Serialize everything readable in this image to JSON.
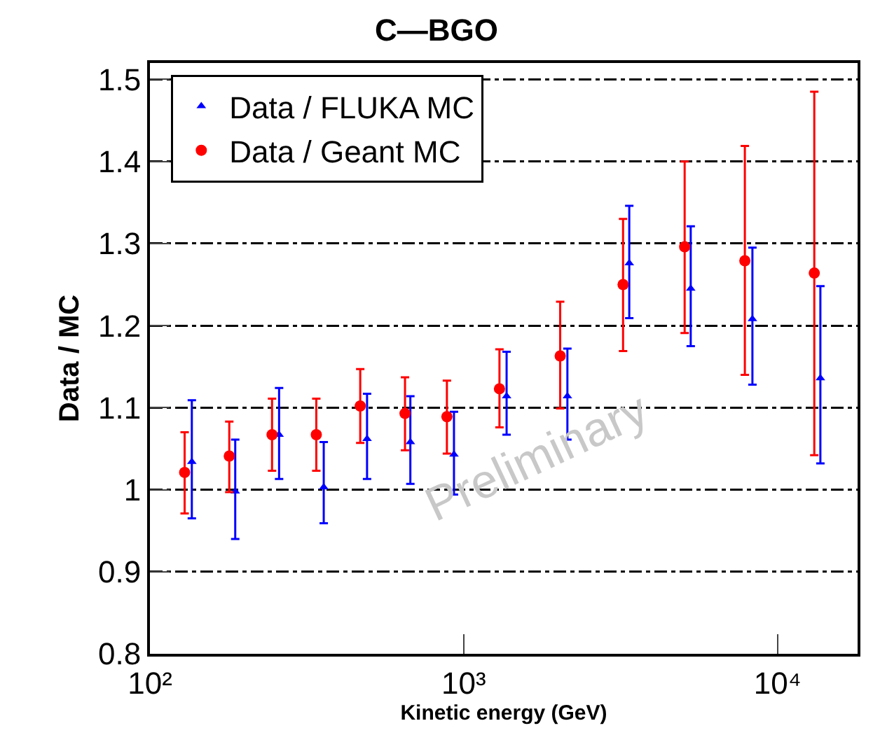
{
  "chart_data": {
    "type": "scatter",
    "title": "C—BGO",
    "xlabel": "Kinetic energy (GeV)",
    "ylabel": "Data / MC",
    "log": "x",
    "xlim": [
      100,
      18000
    ],
    "xticks": [
      {
        "value": 100,
        "label": "10²"
      },
      {
        "value": 1000,
        "label": "10³"
      },
      {
        "value": 10000,
        "label": "10⁴"
      }
    ],
    "ylim": [
      0.8,
      1.52
    ],
    "yticks": [
      0.8,
      0.9,
      1,
      1.1,
      1.2,
      1.3,
      1.4,
      1.5
    ],
    "grid": "y",
    "legend": "top left",
    "series": [
      {
        "name": "Data / FLUKA MC",
        "color": "#0000ff",
        "marker": "triangle",
        "x": [
          136,
          187,
          258,
          358,
          492,
          676,
          931,
          1370,
          2140,
          3370,
          5290,
          8320,
          13700
        ],
        "values": [
          1.034,
          0.998,
          1.067,
          1.003,
          1.062,
          1.058,
          1.043,
          1.114,
          1.114,
          1.276,
          1.245,
          1.208,
          1.136
        ],
        "errors": [
          [
            0.965,
            1.109
          ],
          [
            0.94,
            1.061
          ],
          [
            1.013,
            1.124
          ],
          [
            0.959,
            1.058
          ],
          [
            1.013,
            1.117
          ],
          [
            1.007,
            1.114
          ],
          [
            0.994,
            1.095
          ],
          [
            1.067,
            1.168
          ],
          [
            1.061,
            1.172
          ],
          [
            1.209,
            1.346
          ],
          [
            1.175,
            1.321
          ],
          [
            1.128,
            1.295
          ],
          [
            1.032,
            1.248
          ]
        ]
      },
      {
        "name": "Data / Geant MC",
        "color": "#ff0000",
        "marker": "circle",
        "x": [
          129,
          179,
          245,
          339,
          468,
          650,
          884,
          1300,
          2030,
          3220,
          5060,
          7870,
          13100
        ],
        "values": [
          1.021,
          1.041,
          1.067,
          1.067,
          1.102,
          1.093,
          1.089,
          1.123,
          1.163,
          1.25,
          1.296,
          1.279,
          1.264
        ],
        "errors": [
          [
            0.971,
            1.07
          ],
          [
            0.997,
            1.083
          ],
          [
            1.023,
            1.111
          ],
          [
            1.023,
            1.111
          ],
          [
            1.057,
            1.147
          ],
          [
            1.048,
            1.137
          ],
          [
            1.044,
            1.133
          ],
          [
            1.076,
            1.171
          ],
          [
            1.099,
            1.229
          ],
          [
            1.169,
            1.33
          ],
          [
            1.191,
            1.4
          ],
          [
            1.14,
            1.419
          ],
          [
            1.042,
            1.485
          ]
        ]
      }
    ],
    "annotations": [
      "Preliminary"
    ]
  }
}
